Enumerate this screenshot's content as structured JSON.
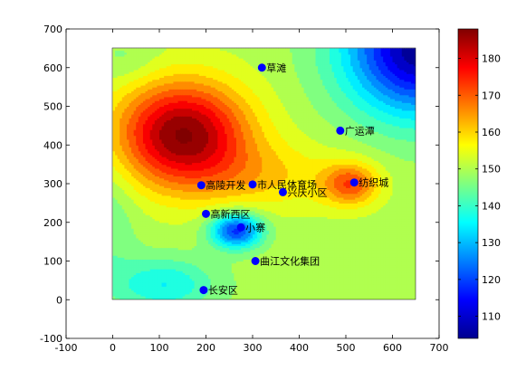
{
  "chart_data": {
    "type": "contour",
    "title": "",
    "xlabel": "",
    "ylabel": "",
    "xlim": [
      -100,
      700
    ],
    "ylim": [
      -100,
      700
    ],
    "x_ticks": [
      "-100",
      "0",
      "100",
      "200",
      "300",
      "400",
      "500",
      "600",
      "700"
    ],
    "y_ticks": [
      "-100",
      "0",
      "100",
      "200",
      "300",
      "400",
      "500",
      "600",
      "700"
    ],
    "field_extent": {
      "x": [
        0,
        650
      ],
      "y": [
        0,
        650
      ]
    },
    "colorbar": {
      "colormap": "jet",
      "range": [
        104,
        188
      ],
      "ticks": [
        "110",
        "120",
        "130",
        "140",
        "150",
        "160",
        "170",
        "180"
      ]
    },
    "points": [
      {
        "label": "草滩",
        "x": 320,
        "y": 600
      },
      {
        "label": "广运潭",
        "x": 488,
        "y": 437
      },
      {
        "label": "纺织城",
        "x": 518,
        "y": 303
      },
      {
        "label": "高陵开发",
        "x": 190,
        "y": 296
      },
      {
        "label": "市人民体育场",
        "x": 300,
        "y": 298
      },
      {
        "label": "兴庆小区",
        "x": 365,
        "y": 278
      },
      {
        "label": "高新西区",
        "x": 200,
        "y": 222
      },
      {
        "label": "小寨",
        "x": 275,
        "y": 187
      },
      {
        "label": "曲江文化集团",
        "x": 306,
        "y": 100
      },
      {
        "label": "长安区",
        "x": 195,
        "y": 25
      }
    ],
    "marker_color": "#0000ff"
  }
}
